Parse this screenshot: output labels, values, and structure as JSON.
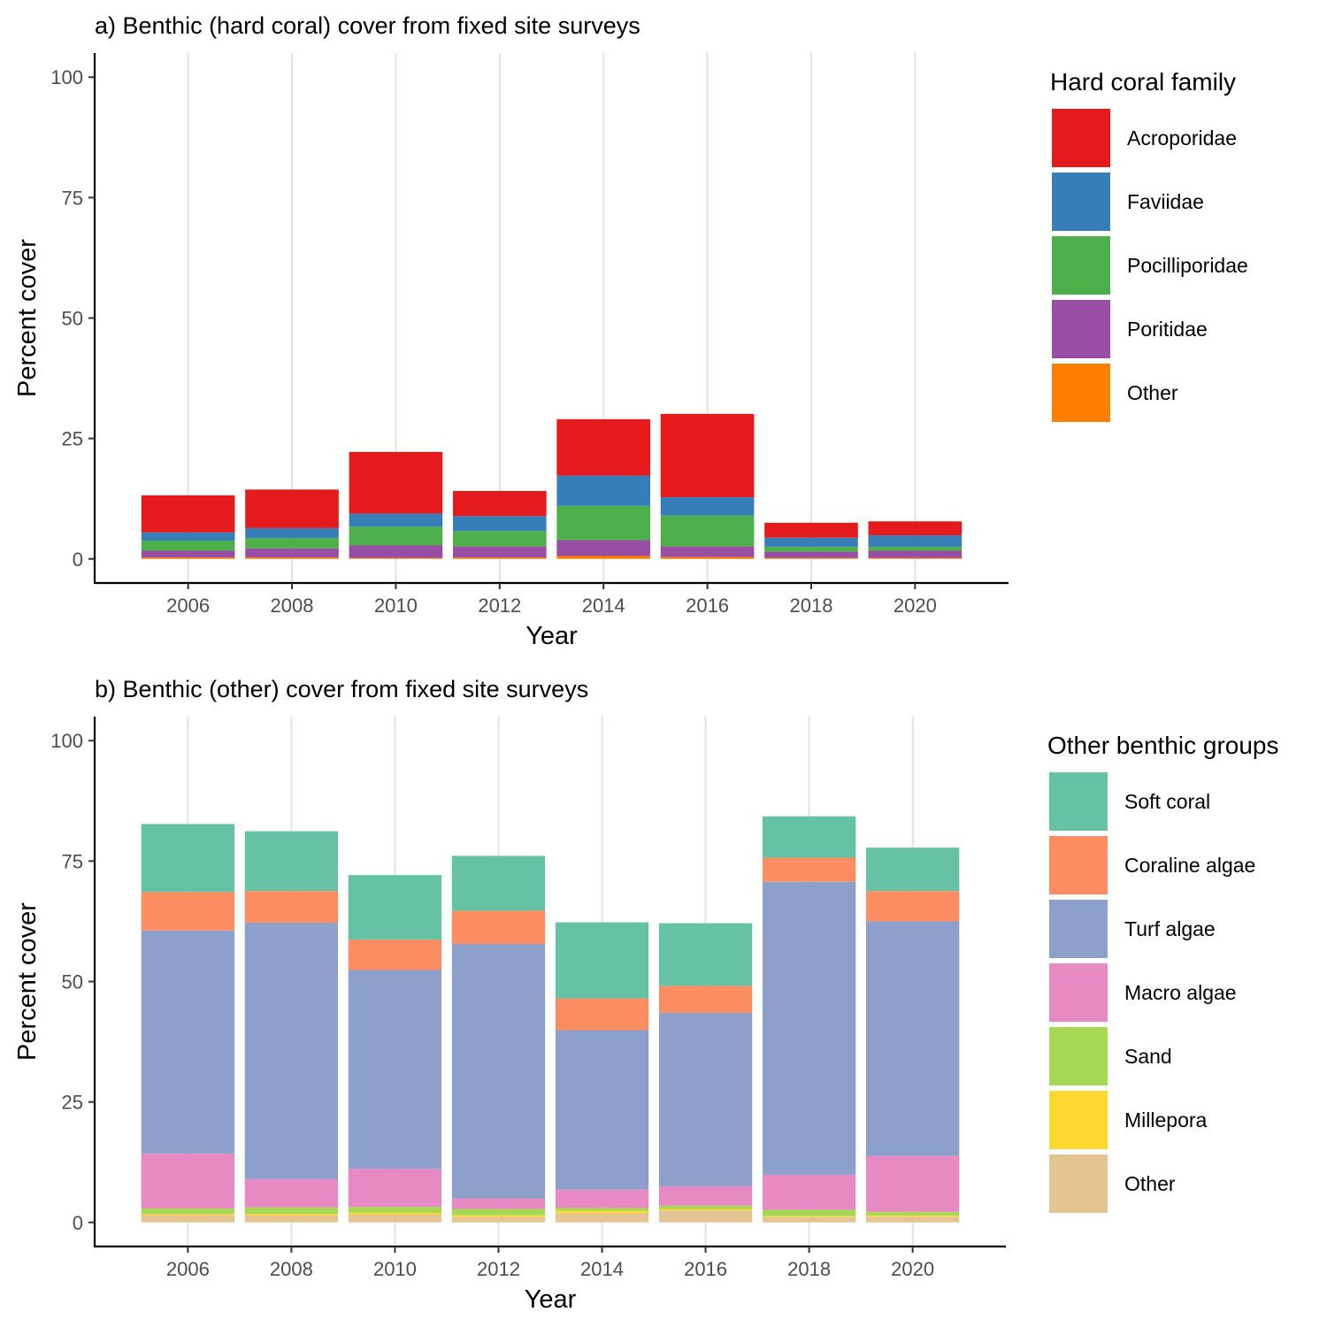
{
  "chart_data": [
    {
      "type": "bar",
      "stacked": true,
      "title": "a) Benthic (hard coral) cover from fixed site surveys",
      "xlabel": "Year",
      "ylabel": "Percent cover",
      "x": [
        2006,
        2008,
        2010,
        2012,
        2014,
        2016,
        2018,
        2020
      ],
      "xlim": [
        2004.2,
        2021.8
      ],
      "xticks": [
        2006,
        2008,
        2010,
        2012,
        2014,
        2016,
        2018,
        2020
      ],
      "ylim": [
        -5,
        105
      ],
      "yticks": [
        0,
        25,
        50,
        75,
        100
      ],
      "grid": "vertical major",
      "legend": {
        "title": "Hard coral family",
        "placement": "right"
      },
      "series": [
        {
          "name": "Acroporidae",
          "color": "#E41A1C",
          "values": [
            7.7,
            8.0,
            12.8,
            5.2,
            11.7,
            17.3,
            3.1,
            2.9
          ]
        },
        {
          "name": "Faviidae",
          "color": "#377EB8",
          "values": [
            1.7,
            2.1,
            2.7,
            3.1,
            6.3,
            3.8,
            1.9,
            2.4
          ]
        },
        {
          "name": "Pocilliporidae",
          "color": "#4DAF4A",
          "values": [
            2.1,
            2.1,
            3.9,
            3.2,
            7.1,
            6.4,
            1.0,
            0.8
          ]
        },
        {
          "name": "Poritidae",
          "color": "#984EA3",
          "values": [
            1.4,
            1.9,
            2.6,
            2.3,
            3.3,
            2.2,
            1.3,
            1.5
          ]
        },
        {
          "name": "Other",
          "color": "#FF7F00",
          "values": [
            0.3,
            0.3,
            0.2,
            0.3,
            0.6,
            0.4,
            0.2,
            0.2
          ]
        }
      ]
    },
    {
      "type": "bar",
      "stacked": true,
      "title": "b) Benthic (other) cover from fixed site surveys",
      "xlabel": "Year",
      "ylabel": "Percent cover",
      "x": [
        2006,
        2008,
        2010,
        2012,
        2014,
        2016,
        2018,
        2020
      ],
      "xlim": [
        2004.2,
        2021.8
      ],
      "xticks": [
        2006,
        2008,
        2010,
        2012,
        2014,
        2016,
        2018,
        2020
      ],
      "ylim": [
        -5,
        105
      ],
      "yticks": [
        0,
        25,
        50,
        75,
        100
      ],
      "grid": "vertical major",
      "legend": {
        "title": "Other benthic groups",
        "placement": "right"
      },
      "series": [
        {
          "name": "Soft coral",
          "color": "#66C2A5",
          "values": [
            14.1,
            12.4,
            13.4,
            11.4,
            15.8,
            13.0,
            8.6,
            9.0
          ]
        },
        {
          "name": "Coraline algae",
          "color": "#FC8D62",
          "values": [
            8.0,
            6.6,
            6.3,
            6.9,
            6.6,
            5.6,
            5.0,
            6.3
          ]
        },
        {
          "name": "Turf algae",
          "color": "#8DA0CB",
          "values": [
            46.3,
            53.2,
            41.3,
            52.8,
            33.1,
            36.0,
            60.8,
            48.7
          ]
        },
        {
          "name": "Macro algae",
          "color": "#E78AC3",
          "values": [
            11.4,
            5.9,
            7.9,
            2.2,
            3.8,
            4.0,
            7.3,
            11.6
          ]
        },
        {
          "name": "Sand",
          "color": "#A6D854",
          "values": [
            1.1,
            1.3,
            1.2,
            1.3,
            0.6,
            0.7,
            1.3,
            0.8
          ]
        },
        {
          "name": "Millepora",
          "color": "#FFD92F",
          "values": [
            0.2,
            0.3,
            0.4,
            0.3,
            0.5,
            0.3,
            0.2,
            0.2
          ]
        },
        {
          "name": "Other",
          "color": "#E5C494",
          "values": [
            1.6,
            1.5,
            1.6,
            1.2,
            1.9,
            2.5,
            1.1,
            1.2
          ]
        }
      ]
    }
  ]
}
